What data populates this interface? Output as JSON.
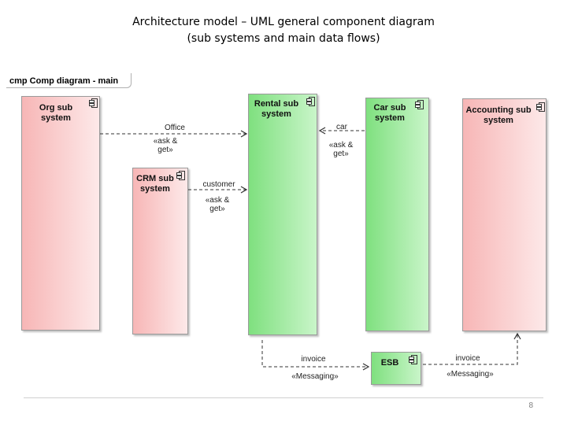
{
  "slide": {
    "title_line1": "Architecture model – UML general component diagram",
    "title_line2": "(sub systems and main data flows)",
    "page_number": "8"
  },
  "diagram": {
    "frame_label": "cmp Comp diagram - main",
    "components": {
      "org": {
        "name_line1": "Org sub",
        "name_line2": "system",
        "color": "#f7b6b6"
      },
      "crm": {
        "name_line1": "CRM sub",
        "name_line2": "system",
        "color": "#f7b6b6"
      },
      "rental": {
        "name_line1": "Rental sub",
        "name_line2": "system",
        "color": "#7fe07f"
      },
      "car": {
        "name_line1": "Car sub",
        "name_line2": "system",
        "color": "#7fe07f"
      },
      "accounting": {
        "name_line1": "Accounting sub",
        "name_line2": "system",
        "color": "#f7b6b6"
      },
      "esb": {
        "name": "ESB",
        "color": "#7fe07f"
      }
    },
    "flows": {
      "office": {
        "name": "Office",
        "stereo_line1": "«ask &",
        "stereo_line2": "get»"
      },
      "car": {
        "name": "car",
        "stereo_line1": "«ask &",
        "stereo_line2": "get»"
      },
      "customer": {
        "name": "customer",
        "stereo_line1": "«ask &",
        "stereo_line2": "get»"
      },
      "invoice_left": {
        "name": "invoice",
        "stereo": "«Messaging»"
      },
      "invoice_right": {
        "name": "invoice",
        "stereo": "«Messaging»"
      }
    }
  }
}
